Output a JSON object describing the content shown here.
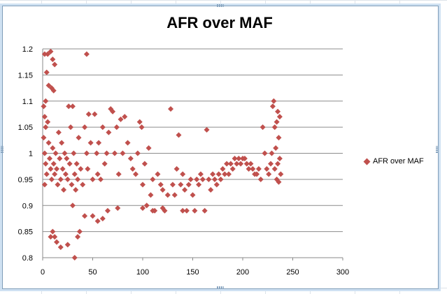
{
  "chart_data": {
    "type": "scatter",
    "title": "AFR over MAF",
    "xlabel": "",
    "ylabel": "",
    "xlim": [
      0,
      300
    ],
    "ylim": [
      0.8,
      1.2
    ],
    "x_ticks": [
      "0",
      "50",
      "100",
      "150",
      "200",
      "250",
      "300"
    ],
    "y_ticks": [
      "0.8",
      "0.85",
      "0.9",
      "0.95",
      "1",
      "1.05",
      "1.1",
      "1.15",
      "1.2"
    ],
    "grid": "horizontal",
    "legend_position": "right",
    "series": [
      {
        "name": "AFR over MAF",
        "color": "#c0504d",
        "marker": "diamond",
        "points": [
          [
            2,
            1.19
          ],
          [
            5,
            1.19
          ],
          [
            8,
            1.195
          ],
          [
            10,
            1.18
          ],
          [
            12,
            1.17
          ],
          [
            4,
            1.155
          ],
          [
            6,
            1.13
          ],
          [
            9,
            1.125
          ],
          [
            11,
            1.12
          ],
          [
            3,
            1.1
          ],
          [
            1,
            1.09
          ],
          [
            2,
            1.07
          ],
          [
            3,
            1.05
          ],
          [
            1,
            1.03
          ],
          [
            2,
            1.0
          ],
          [
            3,
            0.98
          ],
          [
            4,
            0.96
          ],
          [
            2,
            0.94
          ],
          [
            5,
            1.06
          ],
          [
            6,
            1.02
          ],
          [
            7,
            0.99
          ],
          [
            8,
            0.97
          ],
          [
            9,
            0.95
          ],
          [
            10,
            1.01
          ],
          [
            11,
            0.98
          ],
          [
            12,
            0.96
          ],
          [
            13,
            1.0
          ],
          [
            14,
            0.97
          ],
          [
            15,
            0.94
          ],
          [
            16,
            1.04
          ],
          [
            17,
            0.99
          ],
          [
            18,
            0.95
          ],
          [
            19,
            1.02
          ],
          [
            20,
            0.97
          ],
          [
            21,
            0.93
          ],
          [
            22,
            1.0
          ],
          [
            23,
            0.96
          ],
          [
            24,
            0.99
          ],
          [
            25,
            0.95
          ],
          [
            26,
            1.09
          ],
          [
            27,
            0.98
          ],
          [
            28,
            1.05
          ],
          [
            29,
            0.94
          ],
          [
            30,
            1.09
          ],
          [
            31,
            1.0
          ],
          [
            32,
            0.96
          ],
          [
            33,
            0.93
          ],
          [
            34,
            0.98
          ],
          [
            35,
            0.95
          ],
          [
            36,
            1.03
          ],
          [
            38,
            0.97
          ],
          [
            40,
            0.94
          ],
          [
            42,
            1.05
          ],
          [
            44,
            1.0
          ],
          [
            45,
            0.97
          ],
          [
            46,
            1.075
          ],
          [
            48,
            1.02
          ],
          [
            50,
            0.95
          ],
          [
            52,
            1.075
          ],
          [
            54,
            1.0
          ],
          [
            55,
            0.96
          ],
          [
            56,
            1.02
          ],
          [
            58,
            0.95
          ],
          [
            60,
            1.05
          ],
          [
            62,
            0.98
          ],
          [
            64,
            1.0
          ],
          [
            66,
            1.04
          ],
          [
            68,
            1.085
          ],
          [
            70,
            1.08
          ],
          [
            72,
            1.0
          ],
          [
            74,
            1.05
          ],
          [
            76,
            0.96
          ],
          [
            78,
            1.065
          ],
          [
            80,
            1.0
          ],
          [
            82,
            1.07
          ],
          [
            85,
            1.02
          ],
          [
            88,
            0.99
          ],
          [
            90,
            0.97
          ],
          [
            93,
            0.96
          ],
          [
            95,
            1.0
          ],
          [
            97,
            1.06
          ],
          [
            99,
            1.05
          ],
          [
            100,
            0.94
          ],
          [
            102,
            0.98
          ],
          [
            104,
            0.9
          ],
          [
            106,
            1.01
          ],
          [
            108,
            0.92
          ],
          [
            110,
            0.95
          ],
          [
            112,
            0.89
          ],
          [
            115,
            0.96
          ],
          [
            118,
            0.94
          ],
          [
            120,
            0.93
          ],
          [
            122,
            0.89
          ],
          [
            125,
            0.92
          ],
          [
            128,
            1.085
          ],
          [
            130,
            0.94
          ],
          [
            132,
            0.92
          ],
          [
            134,
            0.97
          ],
          [
            136,
            1.035
          ],
          [
            138,
            0.94
          ],
          [
            140,
            0.96
          ],
          [
            142,
            0.93
          ],
          [
            144,
            0.89
          ],
          [
            146,
            0.94
          ],
          [
            148,
            0.95
          ],
          [
            150,
            0.92
          ],
          [
            152,
            0.89
          ],
          [
            154,
            0.95
          ],
          [
            156,
            0.94
          ],
          [
            158,
            0.96
          ],
          [
            160,
            0.95
          ],
          [
            162,
            0.89
          ],
          [
            164,
            1.045
          ],
          [
            166,
            0.95
          ],
          [
            168,
            0.93
          ],
          [
            170,
            0.96
          ],
          [
            172,
            0.95
          ],
          [
            174,
            0.94
          ],
          [
            176,
            0.96
          ],
          [
            178,
            0.95
          ],
          [
            180,
            0.97
          ],
          [
            182,
            0.96
          ],
          [
            184,
            0.98
          ],
          [
            186,
            0.96
          ],
          [
            188,
            0.98
          ],
          [
            190,
            0.97
          ],
          [
            192,
            0.99
          ],
          [
            194,
            0.98
          ],
          [
            196,
            0.99
          ],
          [
            198,
            0.98
          ],
          [
            200,
            0.99
          ],
          [
            202,
            0.99
          ],
          [
            204,
            0.98
          ],
          [
            206,
            0.97
          ],
          [
            208,
            0.98
          ],
          [
            210,
            0.97
          ],
          [
            212,
            0.96
          ],
          [
            214,
            0.96
          ],
          [
            216,
            0.97
          ],
          [
            218,
            0.95
          ],
          [
            220,
            1.05
          ],
          [
            222,
            1.0
          ],
          [
            224,
            0.97
          ],
          [
            226,
            0.96
          ],
          [
            228,
            0.98
          ],
          [
            230,
            1.09
          ],
          [
            231,
            1.1
          ],
          [
            232,
            1.05
          ],
          [
            233,
            1.01
          ],
          [
            234,
            0.95
          ],
          [
            235,
            1.08
          ],
          [
            236,
            1.03
          ],
          [
            237,
            0.99
          ],
          [
            238,
            0.96
          ],
          [
            236,
            0.945
          ],
          [
            234,
            1.06
          ],
          [
            232,
            0.97
          ],
          [
            229,
            1.0
          ],
          [
            237,
            1.07
          ],
          [
            235,
            0.98
          ],
          [
            8,
            0.84
          ],
          [
            10,
            0.85
          ],
          [
            12,
            0.84
          ],
          [
            14,
            0.83
          ],
          [
            18,
            0.82
          ],
          [
            25,
            0.825
          ],
          [
            32,
            0.8
          ],
          [
            35,
            0.84
          ],
          [
            37,
            0.85
          ],
          [
            30,
            0.9
          ],
          [
            42,
            0.88
          ],
          [
            50,
            0.88
          ],
          [
            55,
            0.87
          ],
          [
            60,
            0.875
          ],
          [
            65,
            0.89
          ],
          [
            75,
            0.895
          ],
          [
            100,
            0.895
          ],
          [
            110,
            0.89
          ],
          [
            120,
            0.895
          ],
          [
            140,
            0.89
          ],
          [
            44,
            1.19
          ]
        ]
      }
    ]
  }
}
